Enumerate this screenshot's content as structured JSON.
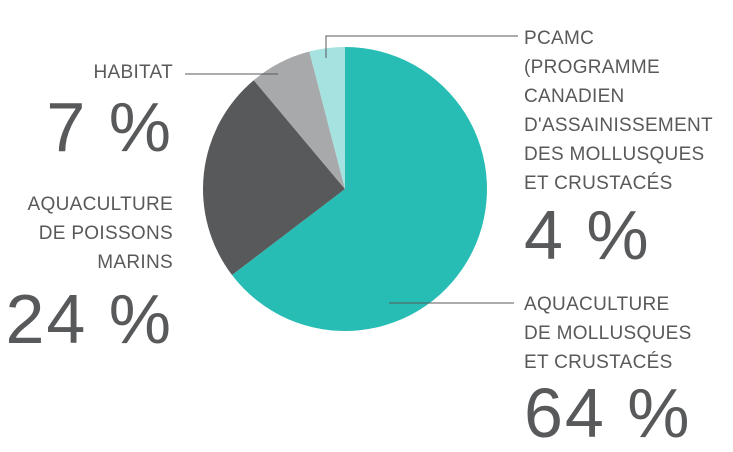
{
  "chart_data": {
    "type": "pie",
    "categories": [
      "AQUACULTURE DE MOLLUSQUES ET CRUSTACÉS",
      "AQUACULTURE DE POISSONS MARINS",
      "HABITAT",
      "PCAMC (PROGRAMME CANADIEN D'ASSAINISSEMENT DES MOLLUSQUES ET CRUSTACÉS"
    ],
    "values": [
      64,
      24,
      7,
      4
    ],
    "colors": [
      "#27bcb4",
      "#58595b",
      "#a7a9ab",
      "#a5e2e0"
    ],
    "slices": [
      {
        "label_lines": [
          "AQUACULTURE",
          "DE MOLLUSQUES",
          "ET CRUSTACÉS"
        ],
        "value_text": "64 %"
      },
      {
        "label_lines": [
          "AQUACULTURE",
          "DE POISSONS",
          "MARINS"
        ],
        "value_text": "24 %"
      },
      {
        "label_lines": [
          "HABITAT"
        ],
        "value_text": "7 %"
      },
      {
        "label_lines": [
          "PCAMC",
          "(PROGRAMME",
          "CANADIEN",
          "D'ASSAINISSEMENT",
          "DES MOLLUSQUES",
          "ET CRUSTACÉS"
        ],
        "value_text": "4 %"
      }
    ],
    "title": "",
    "legend": "none"
  }
}
